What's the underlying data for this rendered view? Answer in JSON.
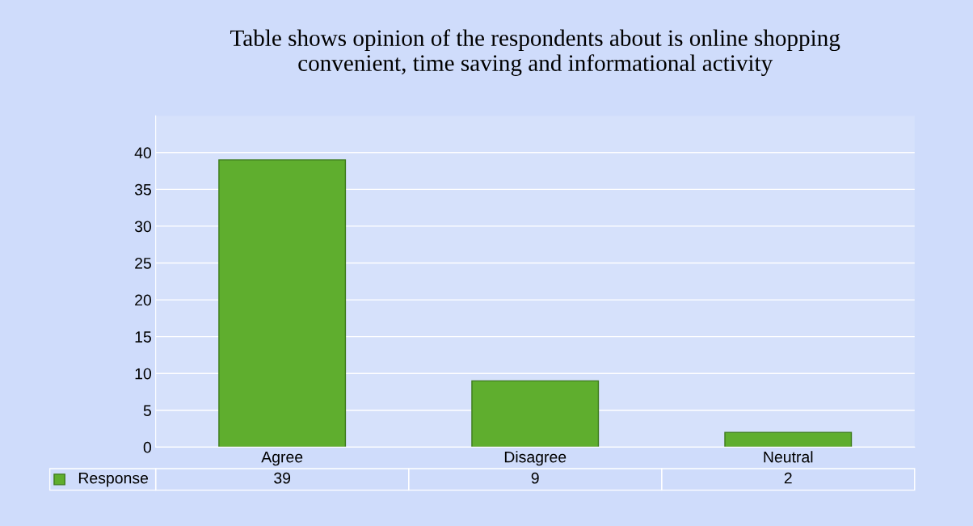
{
  "chart_data": {
    "type": "bar",
    "title": "Table shows opinion of the respondents about is online shopping\nconvenient, time saving and informational activity",
    "categories": [
      "Agree",
      "Disagree",
      "Neutral"
    ],
    "series": [
      {
        "name": "Response",
        "color": "#5fae2e",
        "values": [
          39,
          9,
          2
        ]
      }
    ],
    "ylim": [
      0,
      45
    ],
    "yticks": [
      0,
      5,
      10,
      15,
      20,
      25,
      30,
      35,
      40
    ],
    "grid": "y",
    "data_labels": true
  }
}
